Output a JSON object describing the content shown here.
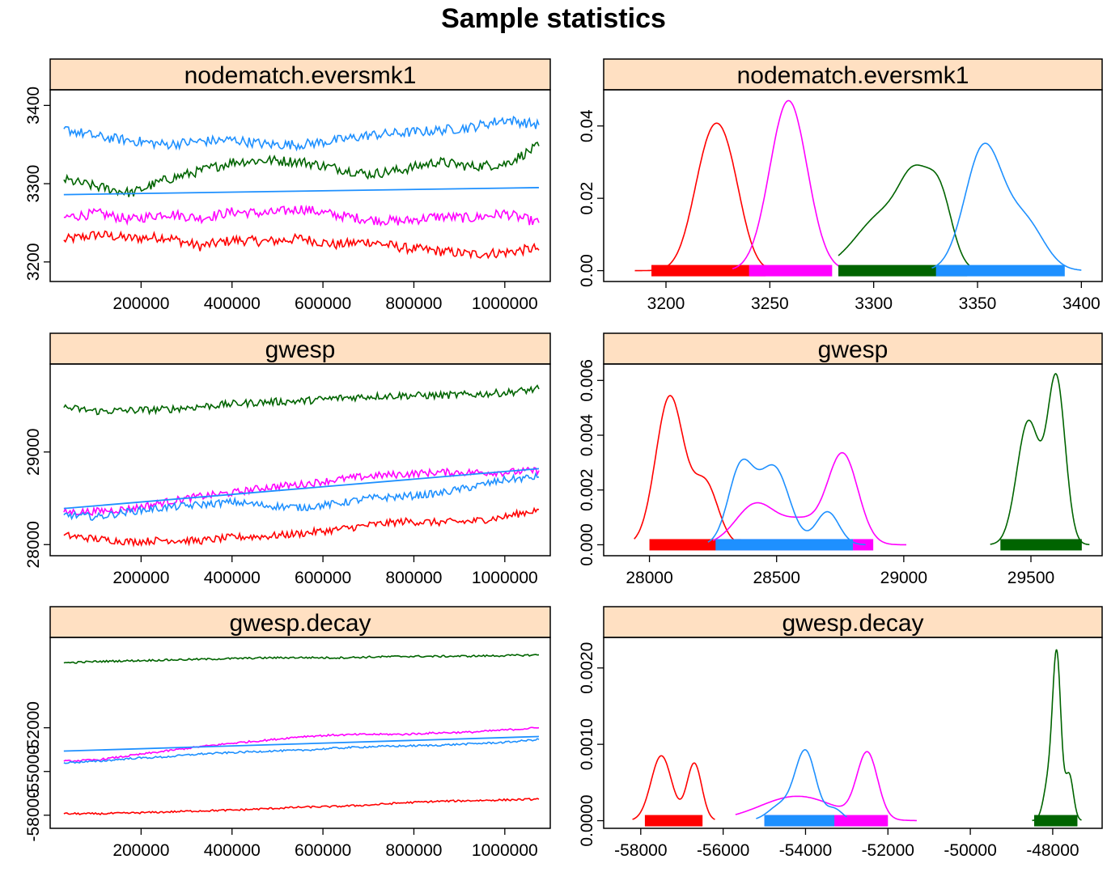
{
  "title": "Sample statistics",
  "colors": {
    "strip_fill": "#ffe0c2",
    "chain1": "#ff0000",
    "chain2": "#ff00ff",
    "chain3": "#006400",
    "chain4": "#1e90ff",
    "trend": "#1e90ff"
  },
  "chart_data": [
    {
      "type": "line",
      "kind": "trace",
      "title": "nodematch.eversmk1",
      "xlim": [
        0,
        1100000
      ],
      "ylim": [
        3175,
        3420
      ],
      "x_ticks": [
        "200000",
        "400000",
        "600000",
        "800000",
        "1000000"
      ],
      "y_ticks": [
        "3200",
        "3300",
        "3400"
      ],
      "x_range": [
        30000,
        1075000
      ],
      "series": [
        {
          "color": "#ff0000",
          "start": 3228,
          "end": 3215,
          "values": [
            3228,
            3235,
            3230,
            3232,
            3220,
            3228,
            3226,
            3230,
            3222,
            3226,
            3218,
            3214,
            3210,
            3212,
            3218
          ],
          "amp": 4
        },
        {
          "color": "#ff00ff",
          "start": 3257,
          "end": 3250,
          "values": [
            3257,
            3262,
            3254,
            3262,
            3256,
            3264,
            3262,
            3268,
            3260,
            3254,
            3252,
            3258,
            3256,
            3262,
            3250
          ],
          "amp": 4
        },
        {
          "color": "#006400",
          "start": 3305,
          "end": 3348,
          "values": [
            3305,
            3296,
            3288,
            3305,
            3316,
            3328,
            3330,
            3328,
            3320,
            3312,
            3318,
            3328,
            3322,
            3325,
            3348
          ],
          "amp": 4
        },
        {
          "color": "#1e90ff",
          "start": 3370,
          "end": 3375,
          "values": [
            3370,
            3360,
            3355,
            3350,
            3354,
            3356,
            3350,
            3350,
            3355,
            3362,
            3365,
            3368,
            3372,
            3382,
            3375
          ],
          "amp": 4
        }
      ],
      "trend": {
        "start": 3286,
        "end": 3295
      }
    },
    {
      "type": "line",
      "kind": "density",
      "title": "nodematch.eversmk1",
      "xlim": [
        3170,
        3410
      ],
      "ylim": [
        -0.003,
        0.05
      ],
      "x_ticks": [
        "3200",
        "3250",
        "3300",
        "3350",
        "3400"
      ],
      "y_ticks": [
        "0.00",
        "0.02",
        "0.04"
      ],
      "series": [
        {
          "color": "#ff0000",
          "peaks": [
            [
              3221,
              0.032,
              8
            ],
            [
              3231,
              0.018,
              7
            ]
          ],
          "range": [
            3185,
            3252
          ],
          "rug": [
            3193,
            3248
          ]
        },
        {
          "color": "#ff00ff",
          "peaks": [
            [
              3259,
              0.047,
              9
            ]
          ],
          "range": [
            3232,
            3284
          ],
          "rug": [
            3240,
            3280
          ]
        },
        {
          "color": "#006400",
          "peaks": [
            [
              3306,
              0.016,
              14
            ],
            [
              3320,
              0.017,
              7
            ],
            [
              3332,
              0.018,
              6
            ]
          ],
          "range": [
            3283,
            3350
          ],
          "rug": [
            3283,
            3345
          ]
        },
        {
          "color": "#1e90ff",
          "peaks": [
            [
              3353,
              0.034,
              9
            ],
            [
              3373,
              0.013,
              9
            ]
          ],
          "range": [
            3328,
            3400
          ],
          "rug": [
            3330,
            3392
          ]
        }
      ]
    },
    {
      "type": "line",
      "kind": "trace",
      "title": "gwesp",
      "xlim": [
        0,
        1100000
      ],
      "ylim": [
        27880,
        29950
      ],
      "x_ticks": [
        "200000",
        "400000",
        "600000",
        "800000",
        "1000000"
      ],
      "y_ticks": [
        "28000",
        "29000"
      ],
      "x_range": [
        30000,
        1075000
      ],
      "series": [
        {
          "color": "#ff0000",
          "start": 28100,
          "end": 28380,
          "values": [
            28100,
            28060,
            28030,
            28050,
            28040,
            28080,
            28090,
            28120,
            28160,
            28210,
            28250,
            28240,
            28250,
            28300,
            28380
          ],
          "amp": 25
        },
        {
          "color": "#ff00ff",
          "start": 28350,
          "end": 28800,
          "values": [
            28350,
            28360,
            28390,
            28460,
            28520,
            28560,
            28620,
            28650,
            28700,
            28740,
            28760,
            28780,
            28780,
            28780,
            28800
          ],
          "amp": 25
        },
        {
          "color": "#006400",
          "start": 29480,
          "end": 29680,
          "values": [
            29480,
            29440,
            29450,
            29460,
            29490,
            29520,
            29540,
            29550,
            29580,
            29600,
            29610,
            29610,
            29620,
            29640,
            29680
          ],
          "amp": 25
        },
        {
          "color": "#1e90ff",
          "start": 28320,
          "end": 28730,
          "values": [
            28320,
            28300,
            28360,
            28400,
            28430,
            28460,
            28420,
            28400,
            28440,
            28500,
            28520,
            28550,
            28620,
            28700,
            28730
          ],
          "amp": 25
        }
      ],
      "trend": {
        "start": 28390,
        "end": 28820
      }
    },
    {
      "type": "line",
      "kind": "density",
      "title": "gwesp",
      "xlim": [
        27820,
        29780
      ],
      "ylim": [
        -0.0004,
        0.0066
      ],
      "x_ticks": [
        "28000",
        "28500",
        "29000",
        "29500"
      ],
      "y_ticks": [
        "0.000",
        "0.002",
        "0.004",
        "0.006"
      ],
      "series": [
        {
          "color": "#ff0000",
          "peaks": [
            [
              28080,
              0.0054,
              55
            ],
            [
              28220,
              0.0022,
              50
            ]
          ],
          "range": [
            27940,
            28420
          ],
          "rug": [
            28000,
            28360
          ]
        },
        {
          "color": "#ff00ff",
          "peaks": [
            [
              28420,
              0.0015,
              80
            ],
            [
              28600,
              0.0008,
              70
            ],
            [
              28760,
              0.0033,
              60
            ]
          ],
          "range": [
            28250,
            29010
          ],
          "rug": [
            28340,
            28880
          ]
        },
        {
          "color": "#006400",
          "peaks": [
            [
              29490,
              0.0045,
              45
            ],
            [
              29600,
              0.006,
              35
            ]
          ],
          "range": [
            29340,
            29730
          ],
          "rug": [
            29380,
            29700
          ]
        },
        {
          "color": "#1e90ff",
          "peaks": [
            [
              28360,
              0.0028,
              50
            ],
            [
              28490,
              0.0028,
              60
            ],
            [
              28700,
              0.0012,
              45
            ]
          ],
          "range": [
            28230,
            28850
          ],
          "rug": [
            28260,
            28800
          ]
        }
      ]
    },
    {
      "type": "line",
      "kind": "trace",
      "title": "gwesp.decay",
      "xlim": [
        0,
        1100000
      ],
      "ylim": [
        -58900,
        -45800
      ],
      "x_ticks": [
        "200000",
        "400000",
        "600000",
        "800000",
        "1000000"
      ],
      "y_ticks": [
        "-58000",
        "-55000",
        "-52000"
      ],
      "x_range": [
        30000,
        1075000
      ],
      "series": [
        {
          "color": "#ff0000",
          "start": -57900,
          "end": -56900,
          "values": [
            -57900,
            -57900,
            -57850,
            -57780,
            -57700,
            -57650,
            -57550,
            -57450,
            -57400,
            -57300,
            -57150,
            -57050,
            -57000,
            -56950,
            -56900
          ],
          "amp": 40
        },
        {
          "color": "#ff00ff",
          "start": -54300,
          "end": -52000,
          "values": [
            -54300,
            -54200,
            -53900,
            -53600,
            -53300,
            -53050,
            -52850,
            -52600,
            -52500,
            -52450,
            -52450,
            -52350,
            -52300,
            -52150,
            -52000
          ],
          "amp": 40
        },
        {
          "color": "#006400",
          "start": -47550,
          "end": -47000,
          "values": [
            -47550,
            -47450,
            -47400,
            -47350,
            -47300,
            -47250,
            -47200,
            -47180,
            -47200,
            -47150,
            -47100,
            -47100,
            -47080,
            -47050,
            -47000
          ],
          "amp": 40
        },
        {
          "color": "#1e90ff",
          "start": -54400,
          "end": -52800,
          "values": [
            -54400,
            -54300,
            -54100,
            -54000,
            -53800,
            -53700,
            -53600,
            -53550,
            -53400,
            -53300,
            -53250,
            -53200,
            -53100,
            -53000,
            -52800
          ],
          "amp": 40
        }
      ],
      "trend": {
        "start": -53600,
        "end": -52600
      }
    },
    {
      "type": "line",
      "kind": "density",
      "title": "gwesp.decay",
      "xlim": [
        -58900,
        -46800
      ],
      "ylim": [
        -0.0001,
        0.0024
      ],
      "x_ticks": [
        "-58000",
        "-56000",
        "-54000",
        "-52000",
        "-50000",
        "-48000"
      ],
      "y_ticks": [
        "0.0000",
        "0.0010",
        "0.0020"
      ],
      "series": [
        {
          "color": "#ff0000",
          "peaks": [
            [
              -57500,
              0.00085,
              250
            ],
            [
              -56700,
              0.00075,
              180
            ]
          ],
          "range": [
            -58200,
            -56200
          ],
          "rug": [
            -57900,
            -56500
          ]
        },
        {
          "color": "#ff00ff",
          "peaks": [
            [
              -54200,
              0.00032,
              900
            ],
            [
              -52500,
              0.00085,
              250
            ]
          ],
          "range": [
            -55700,
            -51300
          ],
          "rug": [
            -55000,
            -52000
          ]
        },
        {
          "color": "#006400",
          "peaks": [
            [
              -48100,
              0.0005,
              120
            ],
            [
              -47900,
              0.0021,
              100
            ],
            [
              -47600,
              0.0006,
              100
            ]
          ],
          "range": [
            -48500,
            -47300
          ],
          "rug": [
            -48450,
            -47400
          ]
        },
        {
          "color": "#1e90ff",
          "peaks": [
            [
              -54600,
              0.0002,
              300
            ],
            [
              -54000,
              0.0009,
              250
            ],
            [
              -53300,
              0.00015,
              200
            ]
          ],
          "range": [
            -55200,
            -53000
          ],
          "rug": [
            -55000,
            -53300
          ]
        }
      ]
    }
  ]
}
